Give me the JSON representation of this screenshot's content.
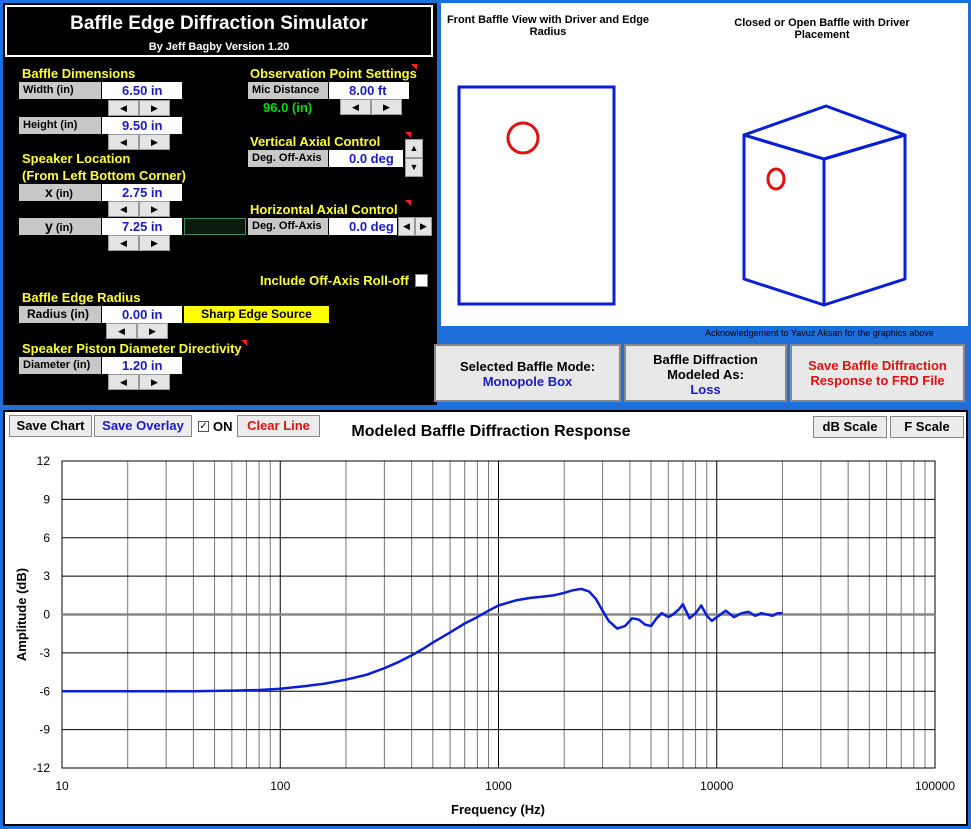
{
  "header": {
    "title": "Baffle Edge Diffraction Simulator",
    "subtitle": "By Jeff Bagby Version 1.20"
  },
  "baffle_dimensions": {
    "section_label": "Baffle Dimensions",
    "width_label": "Width (in)",
    "width_value": "6.50 in",
    "height_label": "Height (in)",
    "height_value": "9.50 in"
  },
  "speaker_location": {
    "section_label": "Speaker Location",
    "section_sublabel": "(From Left Bottom Corner)",
    "x_label": "x",
    "x_unit": "(in)",
    "x_value": "2.75 in",
    "y_label": "y",
    "y_unit": "(in)",
    "y_value": "7.25 in"
  },
  "observation": {
    "section_label": "Observation Point Settings",
    "mic_label": "Mic Distance",
    "mic_value": "8.00 ft",
    "mic_inches": "96.0 (in)"
  },
  "vertical_axial": {
    "section_label": "Vertical Axial Control",
    "label": "Deg. Off-Axis",
    "value": "0.0 deg"
  },
  "horizontal_axial": {
    "section_label": "Horizontal Axial Control",
    "label": "Deg. Off-Axis",
    "value": "0.0 deg"
  },
  "rolloff": {
    "label": "Include Off-Axis Roll-off"
  },
  "edge_radius": {
    "section_label": "Baffle Edge Radius",
    "label": "Radius (in)",
    "value": "0.00 in",
    "source_label": "Sharp Edge Source"
  },
  "piston": {
    "section_label": "Speaker Piston Diameter Directivity",
    "label": "Diameter (in)",
    "value": "1.20 in"
  },
  "diagrams": {
    "front_caption": "Front Baffle View with Driver and Edge Radius",
    "box_caption": "Closed or Open Baffle with Driver Placement",
    "acknowledgement": "Acknowledgement to Yavuz Aksan for the graphics above"
  },
  "mode_buttons": {
    "selected_mode_label": "Selected Baffle Mode:",
    "selected_mode_value": "Monopole Box",
    "modeled_as_label": "Baffle Diffraction Modeled As:",
    "modeled_as_value": "Loss",
    "save_frd_label": "Save Baffle Diffraction Response to FRD File"
  },
  "chart_toolbar": {
    "save_chart": "Save Chart",
    "save_overlay": "Save Overlay",
    "on_label": "ON",
    "clear_line": "Clear Line",
    "db_scale": "dB Scale",
    "f_scale": "F Scale"
  },
  "colors": {
    "accent_blue": "#1e6fd9",
    "trace_blue": "#0a1ed6",
    "label_yellow": "#ffff33",
    "driver_red": "#e01010"
  },
  "chart_data": {
    "type": "line",
    "title": "Modeled Baffle Diffraction Response",
    "xlabel": "Frequency (Hz)",
    "ylabel": "Amplitude (dB)",
    "xscale": "log",
    "xlim": [
      10,
      100000
    ],
    "ylim": [
      -12,
      12
    ],
    "x_ticks": [
      "10",
      "100",
      "1000",
      "10000",
      "100000"
    ],
    "y_ticks": [
      "12",
      "9",
      "6",
      "3",
      "0",
      "-3",
      "-6",
      "-9",
      "-12"
    ],
    "grid": true,
    "series": [
      {
        "x": [
          10,
          20,
          40,
          60,
          80,
          100,
          130,
          160,
          200,
          250,
          300,
          350,
          400,
          450,
          500,
          600,
          700,
          800,
          900,
          1000,
          1200,
          1400,
          1600,
          1800,
          2000,
          2200,
          2400,
          2600,
          2800,
          3000,
          3200,
          3500,
          3800,
          4100,
          4400,
          4700,
          5000,
          5300,
          5600,
          6000,
          6300,
          6700,
          7000,
          7500,
          8000,
          8500,
          9000,
          9500,
          10000,
          11000,
          12000,
          13000,
          14000,
          15000,
          16000,
          17000,
          18000,
          19000,
          20000
        ],
        "y": [
          -6.0,
          -6.0,
          -6.0,
          -5.95,
          -5.9,
          -5.8,
          -5.6,
          -5.4,
          -5.1,
          -4.7,
          -4.2,
          -3.7,
          -3.2,
          -2.7,
          -2.2,
          -1.4,
          -0.7,
          -0.2,
          0.3,
          0.7,
          1.1,
          1.3,
          1.4,
          1.5,
          1.7,
          1.9,
          2.0,
          1.8,
          1.2,
          0.3,
          -0.5,
          -1.1,
          -0.9,
          -0.3,
          -0.4,
          -0.8,
          -0.9,
          -0.3,
          0.1,
          -0.2,
          0.0,
          0.4,
          0.8,
          -0.3,
          0.1,
          0.7,
          -0.1,
          -0.5,
          -0.2,
          0.3,
          -0.2,
          0.1,
          0.2,
          -0.1,
          0.1,
          0.0,
          -0.1,
          0.1,
          0.1
        ]
      }
    ]
  }
}
